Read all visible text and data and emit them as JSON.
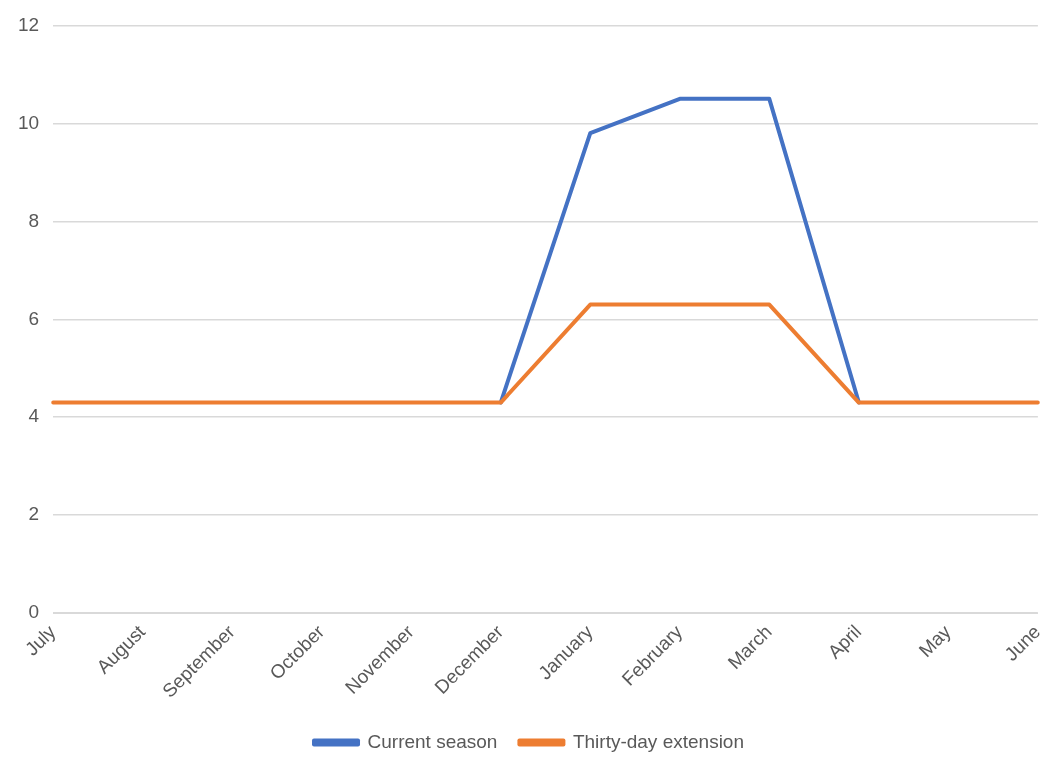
{
  "chart_data": {
    "type": "line",
    "categories": [
      "July",
      "August",
      "September",
      "October",
      "November",
      "December",
      "January",
      "February",
      "March",
      "April",
      "May",
      "June"
    ],
    "series": [
      {
        "name": "Current season",
        "color": "#4472c4",
        "values": [
          null,
          null,
          null,
          null,
          null,
          4.3,
          9.8,
          10.5,
          10.5,
          4.3,
          null,
          null
        ]
      },
      {
        "name": "Thirty-day extension",
        "color": "#ed7d31",
        "values": [
          4.3,
          4.3,
          4.3,
          4.3,
          4.3,
          4.3,
          6.3,
          6.3,
          6.3,
          4.3,
          4.3,
          4.3
        ]
      }
    ],
    "ylim": [
      0,
      12
    ],
    "yticks": [
      0,
      2,
      4,
      6,
      8,
      10,
      12
    ],
    "grid": "y",
    "legend": "bottom",
    "marker": "none",
    "line_style": "solid"
  }
}
